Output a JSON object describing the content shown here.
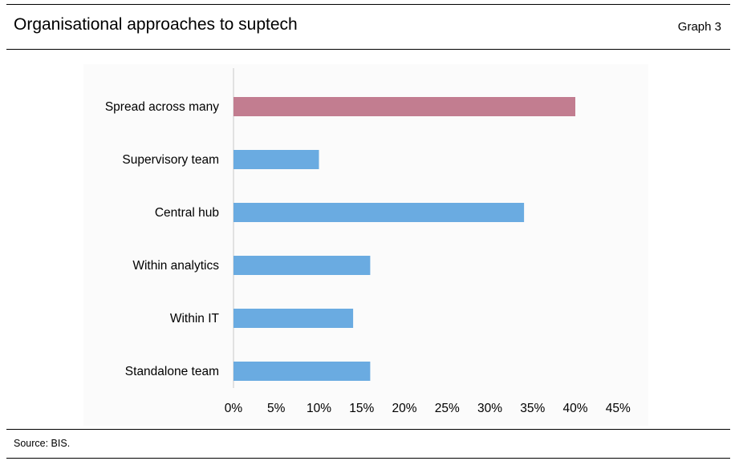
{
  "header": {
    "title": "Organisational approaches to suptech",
    "graph_label": "Graph 3"
  },
  "footer": {
    "source": "Source: BIS."
  },
  "chart_data": {
    "type": "bar",
    "orientation": "horizontal",
    "categories": [
      "Spread across many",
      "Supervisory team",
      "Central hub",
      "Within analytics",
      "Within IT",
      "Standalone team"
    ],
    "values": [
      40,
      10,
      34,
      16,
      14,
      16
    ],
    "unit": "%",
    "xlim": [
      0,
      45
    ],
    "x_ticks": [
      "0%",
      "5%",
      "10%",
      "15%",
      "20%",
      "25%",
      "30%",
      "35%",
      "40%",
      "45%"
    ],
    "highlight_index": 0,
    "colors": {
      "highlight": "#c27d90",
      "default": "#6aabe1",
      "axis": "#d9d9d9"
    },
    "grid": false,
    "legend": "none"
  }
}
